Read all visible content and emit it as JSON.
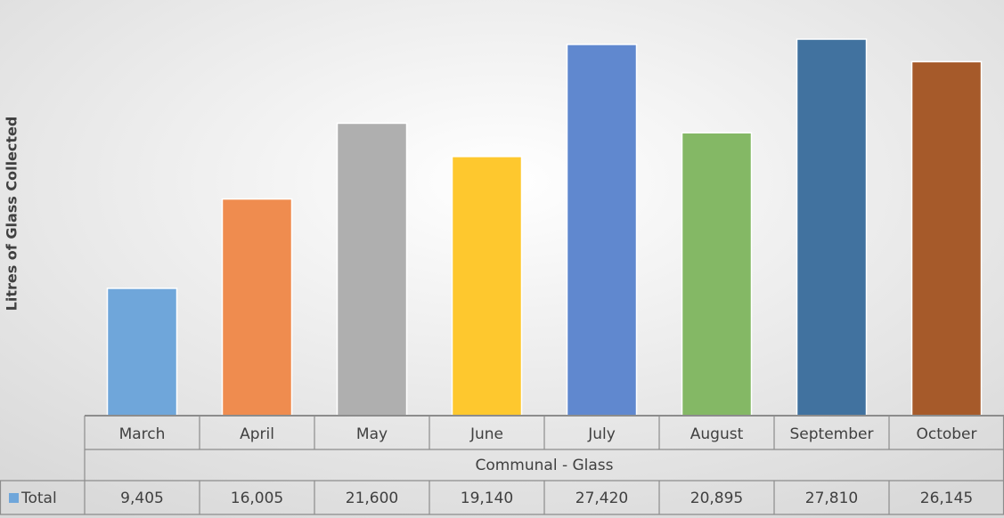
{
  "chart_data": {
    "type": "bar",
    "y_axis_label": "Litres of Glass Collected",
    "group_label": "Communal - Glass",
    "categories": [
      "March",
      "April",
      "May",
      "June",
      "July",
      "August",
      "September",
      "October"
    ],
    "colors": [
      "#6fa6da",
      "#ef8c4f",
      "#afafaf",
      "#fec82e",
      "#6088cf",
      "#84b865",
      "#41729f",
      "#a65a2a"
    ],
    "series": [
      {
        "name": "Total",
        "color": "#6fa6da",
        "values": [
          9405,
          16005,
          21600,
          19140,
          27420,
          20895,
          27810,
          26145
        ],
        "value_labels": [
          "9,405",
          "16,005",
          "21,600",
          "19,140",
          "27,420",
          "20,895",
          "27,810",
          "26,145"
        ]
      }
    ]
  }
}
